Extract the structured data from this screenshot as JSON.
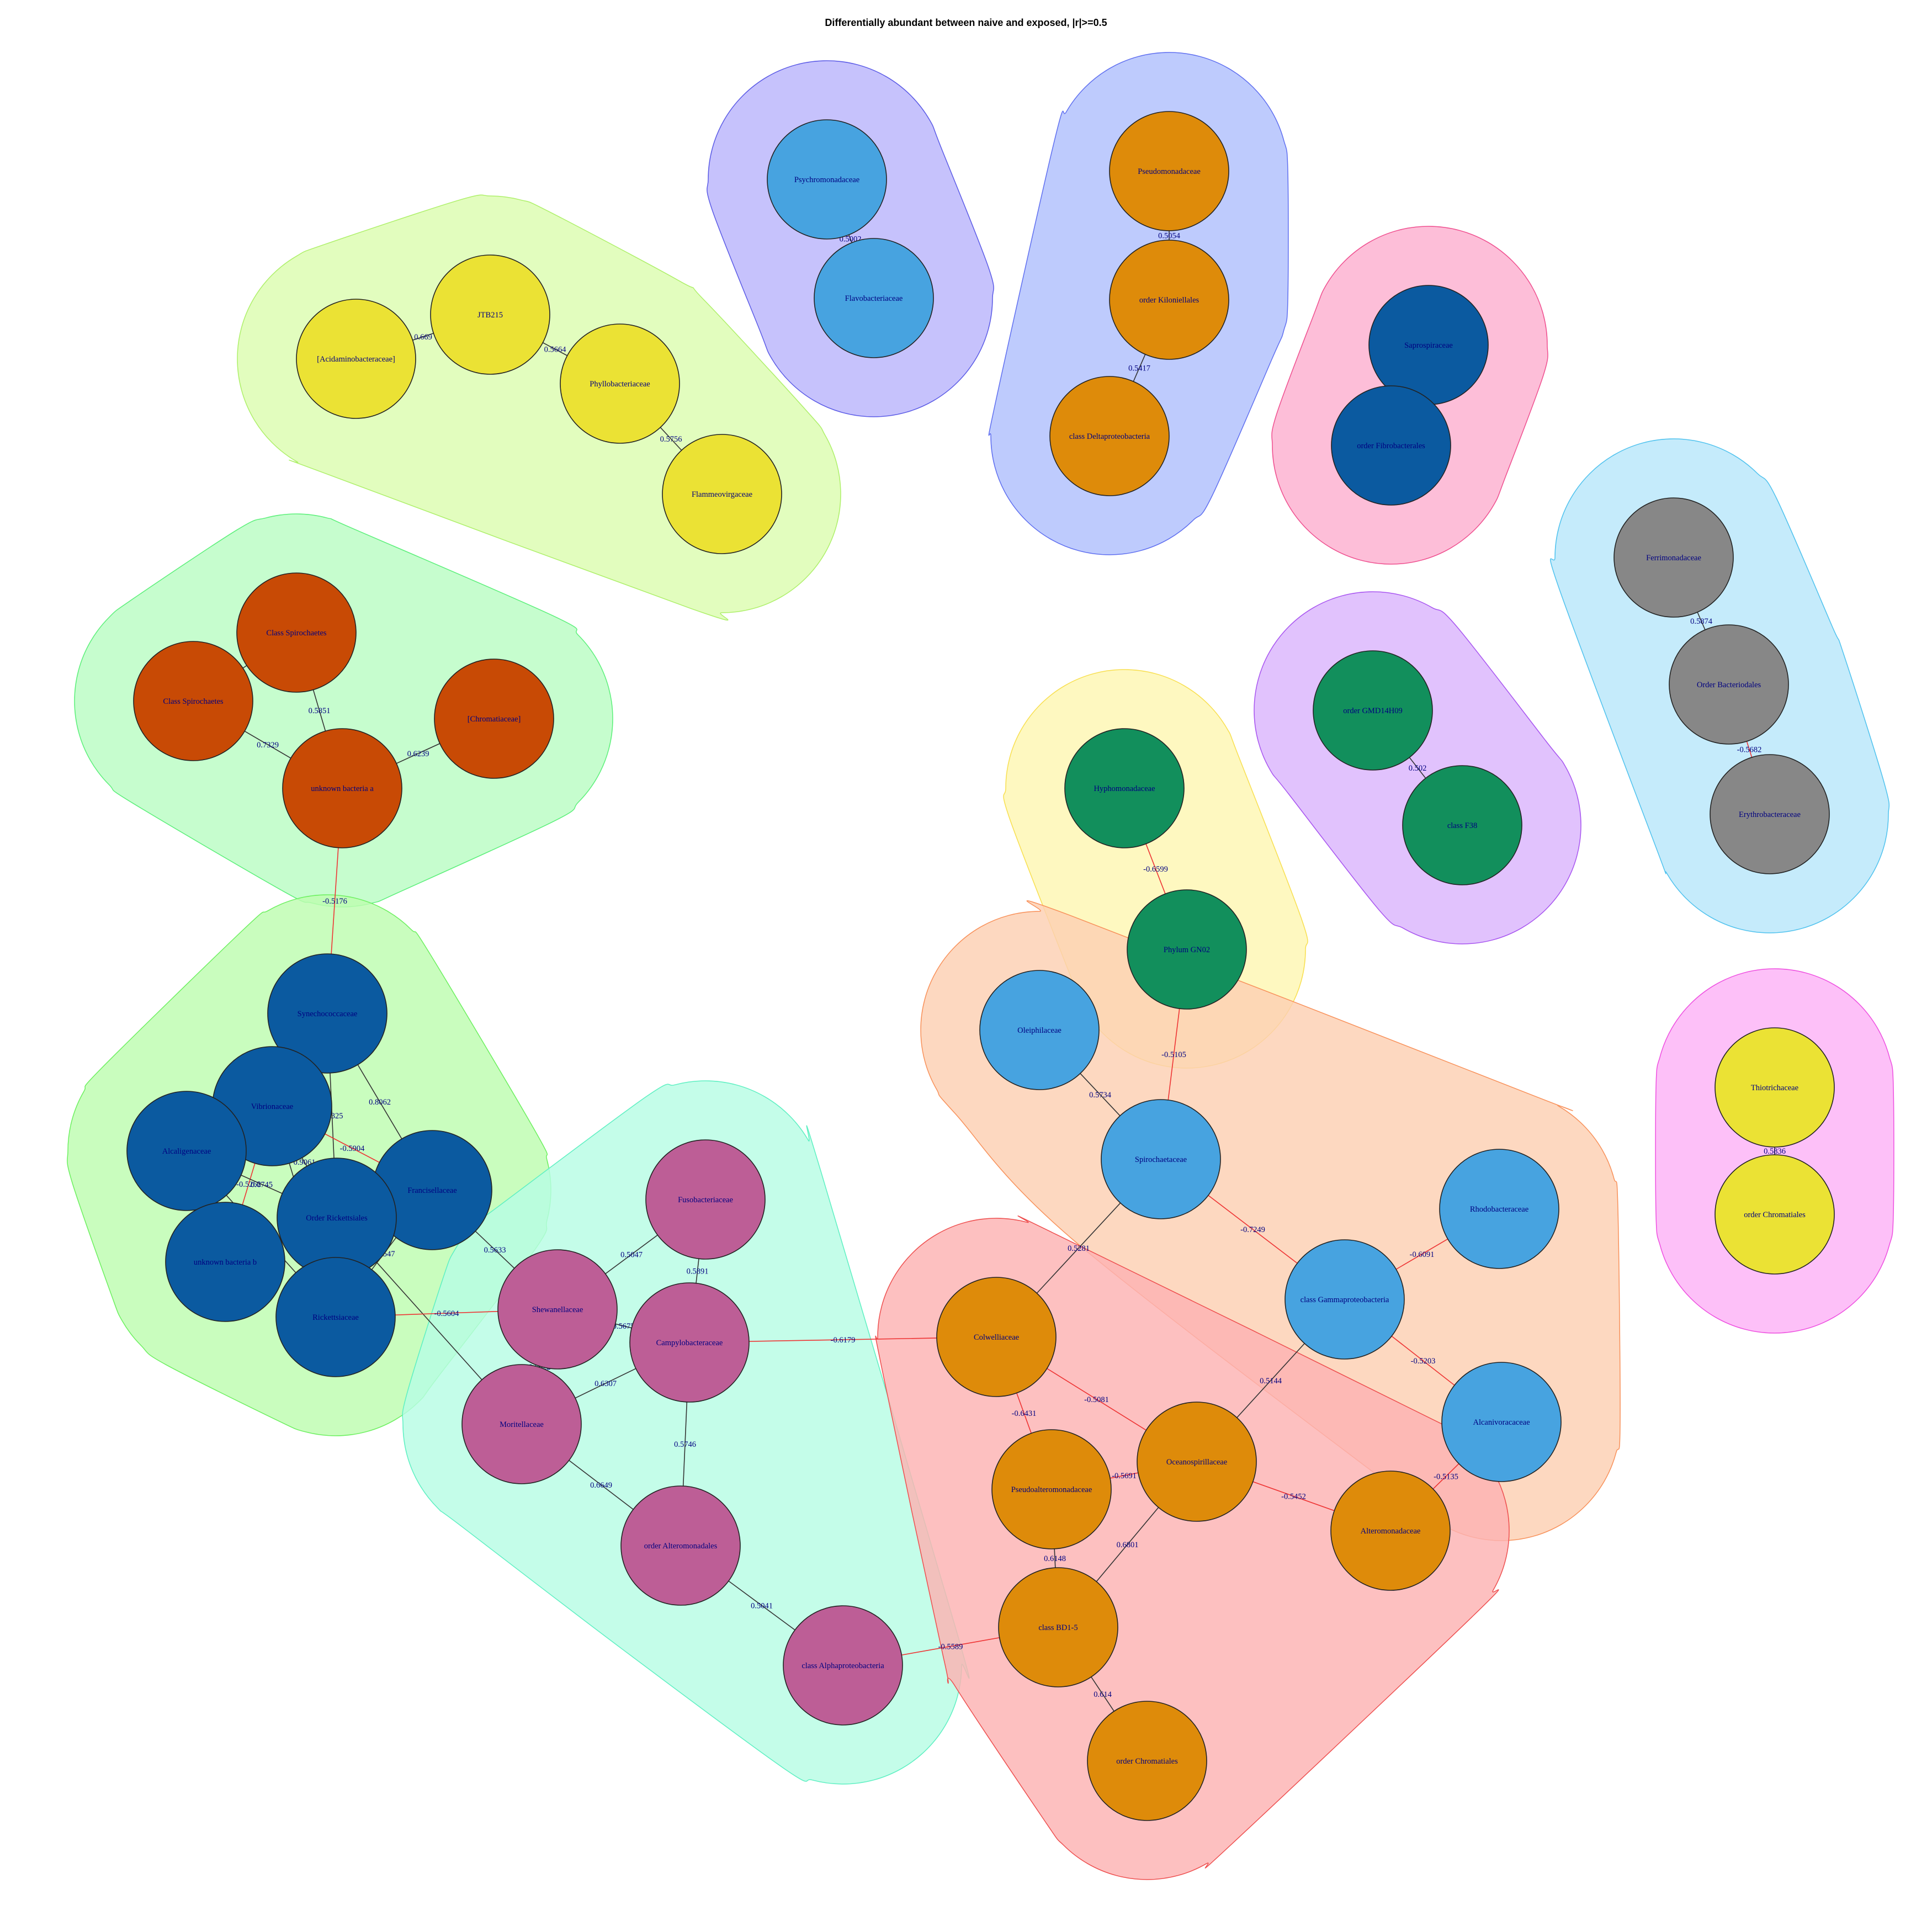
{
  "title": "Differentially abundant between naive and exposed, |r|>=0.5",
  "colors": {
    "positive_edge": "#333333",
    "negative_edge": "#ee3333"
  },
  "modules": [
    {
      "id": "m-lime",
      "fill": "#dcfdb0",
      "stroke": "#aef06a"
    },
    {
      "id": "m-violet",
      "fill": "#b9b4fb",
      "stroke": "#5b5be6"
    },
    {
      "id": "m-blue",
      "fill": "#b0bffc",
      "stroke": "#5f6ff0"
    },
    {
      "id": "m-pink",
      "fill": "#fdb0cf",
      "stroke": "#ef4f8f"
    },
    {
      "id": "m-sky",
      "fill": "#b8e6fa",
      "stroke": "#4fc2ee"
    },
    {
      "id": "m-green",
      "fill": "#b9fcc3",
      "stroke": "#5cf07a"
    },
    {
      "id": "m-purple",
      "fill": "#dab4fc",
      "stroke": "#a855f0"
    },
    {
      "id": "m-yellow",
      "fill": "#fef7b2",
      "stroke": "#f8df4f"
    },
    {
      "id": "m-green2",
      "fill": "#bdfcb0",
      "stroke": "#6cf05f"
    },
    {
      "id": "m-peach",
      "fill": "#fcd0b2",
      "stroke": "#f8915a"
    },
    {
      "id": "m-magenta",
      "fill": "#fcb2f7",
      "stroke": "#ee4fe0"
    },
    {
      "id": "m-mint",
      "fill": "#b7fce4",
      "stroke": "#5ef0c2"
    },
    {
      "id": "m-red",
      "fill": "#fcb2b2",
      "stroke": "#ee4f4f"
    }
  ],
  "nodes": [
    {
      "id": "acidamino",
      "label": "[Acidaminobacteraceae]",
      "color": "#ebe234"
    },
    {
      "id": "jtb215",
      "label": "JTB215",
      "color": "#ebe234"
    },
    {
      "id": "phyllo",
      "label": "Phyllobacteriaceae",
      "color": "#ebe234"
    },
    {
      "id": "flammeo",
      "label": "Flammeovirgaceae",
      "color": "#ebe234"
    },
    {
      "id": "psychro",
      "label": "Psychromonadaceae",
      "color": "#47a3e0"
    },
    {
      "id": "flavo",
      "label": "Flavobacteriaceae",
      "color": "#47a3e0"
    },
    {
      "id": "pseudomonad",
      "label": "Pseudomonadaceae",
      "color": "#de8b0a"
    },
    {
      "id": "kilonie",
      "label": "order Kiloniellales",
      "color": "#de8b0a"
    },
    {
      "id": "delta",
      "label": "class Deltaproteobacteria",
      "color": "#de8b0a"
    },
    {
      "id": "saprospir",
      "label": "Saprospiraceae",
      "color": "#0b5aa0"
    },
    {
      "id": "fibro",
      "label": "order Fibrobacterales",
      "color": "#0b5aa0"
    },
    {
      "id": "ferrimon",
      "label": "Ferrimonadaceae",
      "color": "#878787"
    },
    {
      "id": "bacteroid",
      "label": "Order Bacteriodales",
      "color": "#878787"
    },
    {
      "id": "erythro",
      "label": "Erythrobacteraceae",
      "color": "#878787"
    },
    {
      "id": "spiroA",
      "label": "Class Spirochaetes",
      "color": "#c84a05"
    },
    {
      "id": "spiroB",
      "label": "Class Spirochaetes",
      "color": "#c84a05"
    },
    {
      "id": "chromatiB",
      "label": "[Chromatiaceae]",
      "color": "#c84a05"
    },
    {
      "id": "unkA",
      "label": "unknown bacteria a",
      "color": "#c84a05"
    },
    {
      "id": "gmd",
      "label": "order GMD14H09",
      "color": "#128f5c"
    },
    {
      "id": "f38",
      "label": "class F38",
      "color": "#128f5c"
    },
    {
      "id": "hypho",
      "label": "Hyphomonadaceae",
      "color": "#128f5c"
    },
    {
      "id": "gn02",
      "label": "Phylum GN02",
      "color": "#128f5c"
    },
    {
      "id": "synecho",
      "label": "Synechococcaceae",
      "color": "#0b5aa0"
    },
    {
      "id": "vibrio",
      "label": "Vibrionaceae",
      "color": "#0b5aa0"
    },
    {
      "id": "alcali",
      "label": "Alcaligenaceae",
      "color": "#0b5aa0"
    },
    {
      "id": "francis",
      "label": "Francisellaceae",
      "color": "#0b5aa0"
    },
    {
      "id": "rickettsiales",
      "label": "Order Rickettsiales",
      "color": "#0b5aa0"
    },
    {
      "id": "unkB",
      "label": "unknown bacteria b",
      "color": "#0b5aa0"
    },
    {
      "id": "ricketts",
      "label": "Rickettsiaceae",
      "color": "#0b5aa0"
    },
    {
      "id": "oleiphil",
      "label": "Oleiphilaceae",
      "color": "#47a3e0"
    },
    {
      "id": "spirochaet",
      "label": "Spirochaetaceae",
      "color": "#47a3e0"
    },
    {
      "id": "rhodo",
      "label": "Rhodobacteraceae",
      "color": "#47a3e0"
    },
    {
      "id": "gamma",
      "label": "class Gammaproteobacteria",
      "color": "#47a3e0"
    },
    {
      "id": "alcaniv",
      "label": "Alcanivoracaceae",
      "color": "#47a3e0"
    },
    {
      "id": "thiotri",
      "label": "Thiotrichaceae",
      "color": "#ebe234"
    },
    {
      "id": "chromatialesY",
      "label": "order Chromatiales",
      "color": "#ebe234"
    },
    {
      "id": "fuso",
      "label": "Fusobacteriaceae",
      "color": "#bd5e96"
    },
    {
      "id": "shewa",
      "label": "Shewanellaceae",
      "color": "#bd5e96"
    },
    {
      "id": "campylo",
      "label": "Campylobacteraceae",
      "color": "#bd5e96"
    },
    {
      "id": "moritell",
      "label": "Moritellaceae",
      "color": "#bd5e96"
    },
    {
      "id": "altermon",
      "label": "order Alteromonadales",
      "color": "#bd5e96"
    },
    {
      "id": "alpha",
      "label": "class Alphaproteobacteria",
      "color": "#bd5e96"
    },
    {
      "id": "colwell",
      "label": "Colwelliaceae",
      "color": "#de8b0a"
    },
    {
      "id": "pseudoalt",
      "label": "Pseudoalteromonadaceae",
      "color": "#de8b0a"
    },
    {
      "id": "oceanospir",
      "label": "Oceanospirillaceae",
      "color": "#de8b0a"
    },
    {
      "id": "alteromon",
      "label": "Alteromonadaceae",
      "color": "#de8b0a"
    },
    {
      "id": "bd15",
      "label": "class BD1-5",
      "color": "#de8b0a"
    },
    {
      "id": "chromatialesO",
      "label": "order Chromatiales",
      "color": "#de8b0a"
    }
  ],
  "edges": [
    {
      "source": "acidamino",
      "target": "jtb215",
      "weight": "0.669"
    },
    {
      "source": "jtb215",
      "target": "phyllo",
      "weight": "0.5664"
    },
    {
      "source": "phyllo",
      "target": "flammeo",
      "weight": "0.5756"
    },
    {
      "source": "psychro",
      "target": "flavo",
      "weight": "0.5002"
    },
    {
      "source": "pseudomonad",
      "target": "kilonie",
      "weight": "0.5054"
    },
    {
      "source": "kilonie",
      "target": "delta",
      "weight": "0.5417"
    },
    {
      "source": "saprospir",
      "target": "fibro",
      "weight": ""
    },
    {
      "source": "ferrimon",
      "target": "bacteroid",
      "weight": "0.5874"
    },
    {
      "source": "bacteroid",
      "target": "erythro",
      "weight": "-0.5682"
    },
    {
      "source": "spiroA",
      "target": "spiroB",
      "weight": ""
    },
    {
      "source": "spiroA",
      "target": "unkA",
      "weight": "0.5851"
    },
    {
      "source": "spiroB",
      "target": "unkA",
      "weight": "0.7329"
    },
    {
      "source": "chromatiB",
      "target": "unkA",
      "weight": "0.6239"
    },
    {
      "source": "unkA",
      "target": "synecho",
      "weight": "-0.5176"
    },
    {
      "source": "gmd",
      "target": "f38",
      "weight": "0.502"
    },
    {
      "source": "hypho",
      "target": "gn02",
      "weight": "-0.6599"
    },
    {
      "source": "gn02",
      "target": "spirochaet",
      "weight": "-0.5105"
    },
    {
      "source": "synecho",
      "target": "francis",
      "weight": "0.8062"
    },
    {
      "source": "synecho",
      "target": "rickettsiales",
      "weight": "0.7325"
    },
    {
      "source": "vibrio",
      "target": "francis",
      "weight": "-0.5904"
    },
    {
      "source": "vibrio",
      "target": "rickettsiales",
      "weight": "0.9061"
    },
    {
      "source": "vibrio",
      "target": "unkB",
      "weight": "-0.5262"
    },
    {
      "source": "vibrio",
      "target": "ricketts",
      "weight": ""
    },
    {
      "source": "alcali",
      "target": "rickettsiales",
      "weight": "0.6745"
    },
    {
      "source": "alcali",
      "target": "ricketts",
      "weight": "0.7286"
    },
    {
      "source": "francis",
      "target": "ricketts",
      "weight": "0.7547"
    },
    {
      "source": "francis",
      "target": "shewa",
      "weight": "0.5633"
    },
    {
      "source": "rickettsiales",
      "target": "moritell",
      "weight": ""
    },
    {
      "source": "ricketts",
      "target": "shewa",
      "weight": "-0.5604"
    },
    {
      "source": "oleiphil",
      "target": "spirochaet",
      "weight": "0.5734"
    },
    {
      "source": "spirochaet",
      "target": "gamma",
      "weight": "-0.7249"
    },
    {
      "source": "spirochaet",
      "target": "colwell",
      "weight": "0.5281"
    },
    {
      "source": "rhodo",
      "target": "gamma",
      "weight": "-0.6091"
    },
    {
      "source": "gamma",
      "target": "alcaniv",
      "weight": "-0.5203"
    },
    {
      "source": "gamma",
      "target": "oceanospir",
      "weight": "0.5144"
    },
    {
      "source": "thiotri",
      "target": "chromatialesY",
      "weight": "0.5836"
    },
    {
      "source": "fuso",
      "target": "shewa",
      "weight": "0.5047"
    },
    {
      "source": "fuso",
      "target": "campylo",
      "weight": "0.5891"
    },
    {
      "source": "shewa",
      "target": "campylo",
      "weight": "0.5675"
    },
    {
      "source": "shewa",
      "target": "moritell",
      "weight": "0.6622"
    },
    {
      "source": "campylo",
      "target": "moritell",
      "weight": "0.6307"
    },
    {
      "source": "campylo",
      "target": "altermon",
      "weight": "0.5746"
    },
    {
      "source": "campylo",
      "target": "colwell",
      "weight": "-0.6179"
    },
    {
      "source": "moritell",
      "target": "altermon",
      "weight": "0.6649"
    },
    {
      "source": "altermon",
      "target": "alpha",
      "weight": "0.5041"
    },
    {
      "source": "alpha",
      "target": "bd15",
      "weight": "-0.5589"
    },
    {
      "source": "colwell",
      "target": "pseudoalt",
      "weight": "-0.6431"
    },
    {
      "source": "colwell",
      "target": "oceanospir",
      "weight": "-0.5081"
    },
    {
      "source": "pseudoalt",
      "target": "oceanospir",
      "weight": "-0.5691"
    },
    {
      "source": "pseudoalt",
      "target": "bd15",
      "weight": "0.6148"
    },
    {
      "source": "oceanospir",
      "target": "alteromon",
      "weight": "-0.5452"
    },
    {
      "source": "oceanospir",
      "target": "bd15",
      "weight": "0.6801"
    },
    {
      "source": "alteromon",
      "target": "alcaniv",
      "weight": "-0.5135"
    },
    {
      "source": "bd15",
      "target": "chromatialesO",
      "weight": "0.614"
    }
  ]
}
